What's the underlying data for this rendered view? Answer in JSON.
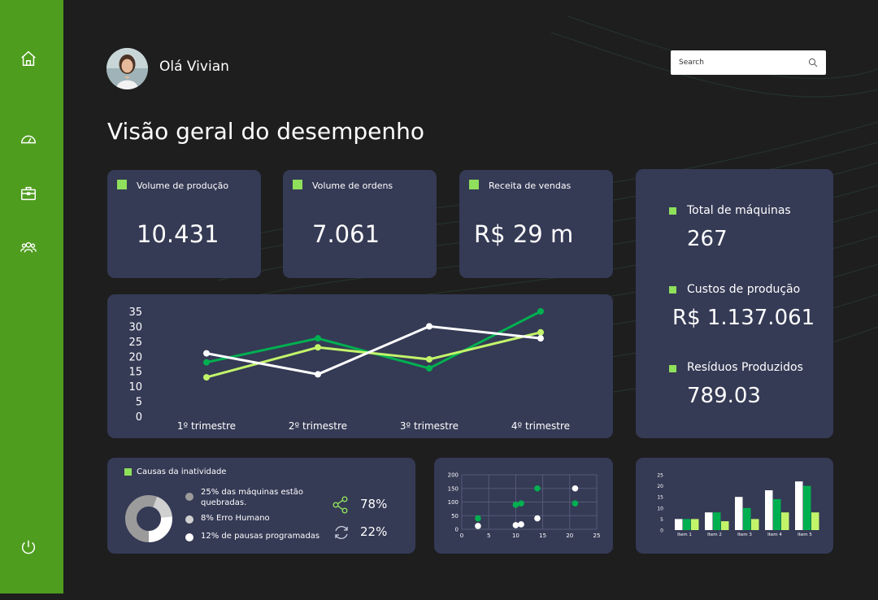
{
  "colors": {
    "sidebar": "#4f9d1f",
    "card": "#353a55",
    "background": "#1e1e1f",
    "accent_dark_green": "#00b050",
    "accent_light_green": "#c2f46a",
    "white": "#ffffff"
  },
  "sidebar": {
    "icons": [
      "home-icon",
      "dashboard-gauge-icon",
      "briefcase-icon",
      "users-icon",
      "power-icon"
    ]
  },
  "header": {
    "greeting": "Olá Vivian",
    "search_placeholder": "Search"
  },
  "page_title": "Visão geral do desempenho",
  "kpis": [
    {
      "label": "Volume de produção",
      "value": "10.431"
    },
    {
      "label": "Volume de ordens",
      "value": "7.061"
    },
    {
      "label": "Receita de vendas",
      "value": "R$ 29 m"
    }
  ],
  "stats": [
    {
      "label": "Total de máquinas",
      "value": "267"
    },
    {
      "label": "Custos de produção",
      "value": "R$ 1.137.061"
    },
    {
      "label": "Resíduos Produzidos",
      "value": "789.03"
    }
  ],
  "inactivity": {
    "title": "Causas da inatividade",
    "legend": [
      {
        "text": "25% das máquinas estão quebradas.",
        "color": "#9b9b9b"
      },
      {
        "text": "8% Erro Humano",
        "color": "#d0d0d0"
      },
      {
        "text": "12% de  pausas programadas",
        "color": "#ffffff"
      }
    ],
    "donut": [
      25,
      8,
      12
    ],
    "share_pct": "78%",
    "refresh_pct": "22%"
  },
  "chart_data": [
    {
      "type": "line",
      "categories": [
        "1º trimestre",
        "2º trimestre",
        "3º trimestre",
        "4º trimestre"
      ],
      "ylim": [
        0,
        35
      ],
      "yticks": [
        "0",
        "5",
        "10",
        "15",
        "20",
        "25",
        "30",
        "35"
      ],
      "series": [
        {
          "color": "#00b050",
          "values": [
            18,
            26,
            16,
            35
          ]
        },
        {
          "color": "#c2f46a",
          "values": [
            13,
            23,
            19,
            28
          ]
        },
        {
          "color": "#ffffff",
          "values": [
            21,
            14,
            30,
            26
          ]
        }
      ]
    },
    {
      "type": "scatter",
      "xlim": [
        0,
        25
      ],
      "ylim": [
        0,
        200
      ],
      "xticks": [
        "0",
        "5",
        "10",
        "15",
        "20",
        "25"
      ],
      "yticks": [
        "0",
        "50",
        "100",
        "150",
        "200"
      ],
      "series": [
        {
          "color": "#00b050",
          "points": [
            [
              3,
              40
            ],
            [
              10,
              90
            ],
            [
              11,
              95
            ],
            [
              14,
              150
            ],
            [
              21,
              95
            ]
          ]
        },
        {
          "color": "#ffffff",
          "points": [
            [
              3,
              12
            ],
            [
              10,
              15
            ],
            [
              11,
              18
            ],
            [
              14,
              40
            ],
            [
              21,
              150
            ]
          ]
        }
      ]
    },
    {
      "type": "bar",
      "categories": [
        "Item 1",
        "Item 2",
        "Item 3",
        "Item 4",
        "Item 5"
      ],
      "ylim": [
        0,
        25
      ],
      "yticks": [
        "0",
        "5",
        "10",
        "15",
        "20",
        "25"
      ],
      "series": [
        {
          "color": "#00b050",
          "values": [
            5,
            8,
            10,
            14,
            20
          ]
        },
        {
          "color": "#c2f46a",
          "values": [
            5,
            4,
            5,
            8,
            8
          ]
        },
        {
          "color": "#ffffff",
          "values": [
            5,
            8,
            15,
            18,
            22
          ]
        }
      ],
      "series_order": [
        2,
        0,
        1
      ]
    }
  ]
}
